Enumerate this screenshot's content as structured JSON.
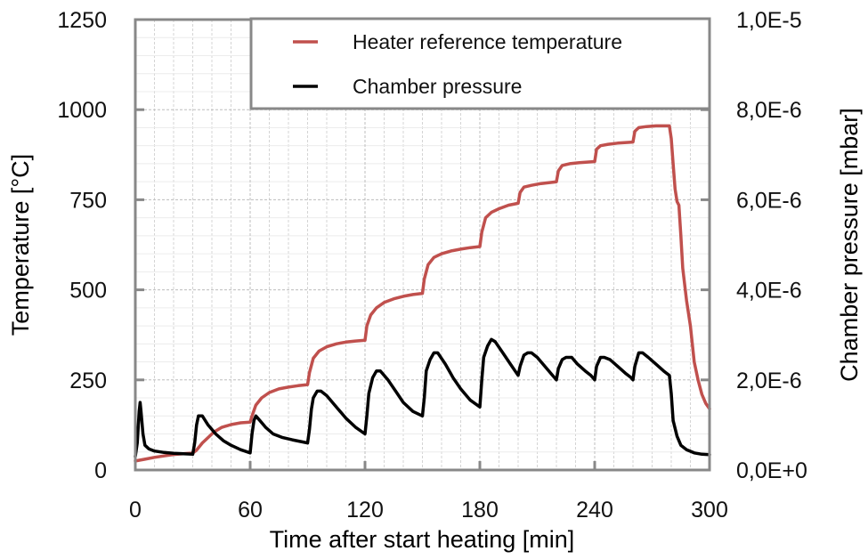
{
  "chart_data": {
    "type": "line",
    "title": "",
    "xlabel": "Time after start heating [min]",
    "ylabel": "Temperature [°C]",
    "y2label": "Chamber pressure [mbar]",
    "xlim": [
      0,
      300
    ],
    "ylim": [
      0,
      1250
    ],
    "y2lim": [
      0,
      1e-05
    ],
    "x_ticks": [
      0,
      60,
      120,
      180,
      240,
      300
    ],
    "x_tick_labels": [
      "0",
      "60",
      "120",
      "180",
      "240",
      "300"
    ],
    "y_ticks": [
      0,
      250,
      500,
      750,
      1000,
      1250
    ],
    "y_tick_labels": [
      "0",
      "250",
      "500",
      "750",
      "1000",
      "1250"
    ],
    "y2_ticks": [
      0,
      2e-06,
      4e-06,
      6e-06,
      8e-06,
      1e-05
    ],
    "y2_tick_labels": [
      "0,0E+0",
      "2,0E-6",
      "4,0E-6",
      "6,0E-6",
      "8,0E-6",
      "1,0E-5"
    ],
    "grid": true,
    "legend_position": "top-right",
    "colors": {
      "temperature": "#c0504d",
      "pressure": "#000000",
      "frame": "#888888",
      "grid": "#bdbdbd"
    },
    "series": [
      {
        "name": "Heater reference temperature",
        "axis": "left",
        "color": "#c0504d",
        "x": [
          0,
          5,
          10,
          15,
          20,
          25,
          30,
          32,
          35,
          38,
          41,
          45,
          50,
          55,
          60,
          61,
          63,
          66,
          70,
          75,
          80,
          85,
          90,
          91,
          93,
          96,
          100,
          105,
          110,
          115,
          120,
          121,
          123,
          126,
          130,
          135,
          140,
          145,
          150,
          151,
          153,
          156,
          160,
          165,
          170,
          175,
          180,
          181,
          183,
          186,
          190,
          195,
          200,
          201,
          203,
          207,
          212,
          220,
          221,
          223,
          227,
          232,
          240,
          241,
          243,
          247,
          252,
          260,
          261,
          263,
          267,
          272,
          279,
          280,
          281,
          282,
          283,
          284,
          285,
          286,
          288,
          290,
          292,
          294,
          296,
          298,
          300
        ],
        "values": [
          25,
          30,
          35,
          39,
          43,
          45,
          47,
          55,
          75,
          90,
          105,
          118,
          126,
          131,
          133,
          150,
          180,
          200,
          215,
          225,
          230,
          234,
          237,
          270,
          310,
          330,
          342,
          350,
          355,
          358,
          360,
          400,
          430,
          450,
          465,
          475,
          482,
          487,
          490,
          530,
          570,
          590,
          600,
          608,
          613,
          617,
          620,
          660,
          700,
          715,
          725,
          735,
          740,
          770,
          785,
          790,
          795,
          800,
          830,
          845,
          850,
          853,
          856,
          890,
          900,
          904,
          907,
          910,
          940,
          950,
          953,
          955,
          955,
          920,
          850,
          780,
          745,
          735,
          650,
          560,
          470,
          400,
          300,
          250,
          210,
          185,
          170
        ]
      },
      {
        "name": "Chamber pressure",
        "axis": "right",
        "color": "#000000",
        "x": [
          0,
          1,
          2,
          2.5,
          3,
          4,
          5,
          7,
          10,
          15,
          20,
          25,
          30,
          31,
          32,
          33,
          35,
          38,
          42,
          46,
          50,
          55,
          60,
          61,
          62,
          63,
          65,
          68,
          72,
          77,
          82,
          90,
          91,
          92,
          93,
          95,
          97,
          100,
          105,
          110,
          115,
          120,
          121,
          122,
          124,
          126,
          128,
          132,
          136,
          140,
          145,
          150,
          151,
          152,
          154,
          156,
          158,
          162,
          166,
          170,
          175,
          180,
          181,
          182,
          184,
          186,
          188,
          192,
          196,
          200,
          201,
          203,
          205,
          207,
          210,
          214,
          218,
          220,
          221,
          223,
          225,
          228,
          231,
          235,
          238,
          240,
          241,
          243,
          245,
          248,
          252,
          256,
          259,
          260,
          261,
          263,
          265,
          268,
          272,
          276,
          279,
          280,
          281,
          283,
          285,
          288,
          292,
          296,
          300
        ],
        "values": [
          3e-07,
          6e-07,
          1.3e-06,
          1.5e-06,
          1.3e-06,
          8e-07,
          5.5e-07,
          4.7e-07,
          4.2e-07,
          3.9e-07,
          3.7e-07,
          3.6e-07,
          3.5e-07,
          6e-07,
          1e-06,
          1.2e-06,
          1.2e-06,
          1e-06,
          8e-07,
          6.5e-07,
          5.5e-07,
          4.5e-07,
          3.8e-07,
          8e-07,
          1.1e-06,
          1.2e-06,
          1.1e-06,
          9.5e-07,
          8e-07,
          7.2e-07,
          6.7e-07,
          6e-07,
          9e-07,
          1.35e-06,
          1.6e-06,
          1.75e-06,
          1.75e-06,
          1.65e-06,
          1.4e-06,
          1.15e-06,
          9.5e-07,
          8e-07,
          1.2e-06,
          1.7e-06,
          2.05e-06,
          2.2e-06,
          2.2e-06,
          2e-06,
          1.75e-06,
          1.5e-06,
          1.3e-06,
          1.2e-06,
          1.6e-06,
          2.2e-06,
          2.45e-06,
          2.6e-06,
          2.6e-06,
          2.35e-06,
          2.05e-06,
          1.8e-06,
          1.55e-06,
          1.4e-06,
          2e-06,
          2.5e-06,
          2.75e-06,
          2.9e-06,
          2.85e-06,
          2.6e-06,
          2.35e-06,
          2.1e-06,
          2.3e-06,
          2.55e-06,
          2.6e-06,
          2.6e-06,
          2.5e-06,
          2.3e-06,
          2.1e-06,
          2e-06,
          2.25e-06,
          2.45e-06,
          2.5e-06,
          2.5e-06,
          2.35e-06,
          2.2e-06,
          2.1e-06,
          2e-06,
          2.3e-06,
          2.5e-06,
          2.5e-06,
          2.45e-06,
          2.3e-06,
          2.15e-06,
          2.05e-06,
          2e-06,
          2.3e-06,
          2.6e-06,
          2.6e-06,
          2.5e-06,
          2.35e-06,
          2.2e-06,
          2.1e-06,
          1.7e-06,
          1.1e-06,
          7.5e-07,
          5.5e-07,
          4.5e-07,
          3.8e-07,
          3.5e-07,
          3.4e-07
        ]
      }
    ]
  }
}
